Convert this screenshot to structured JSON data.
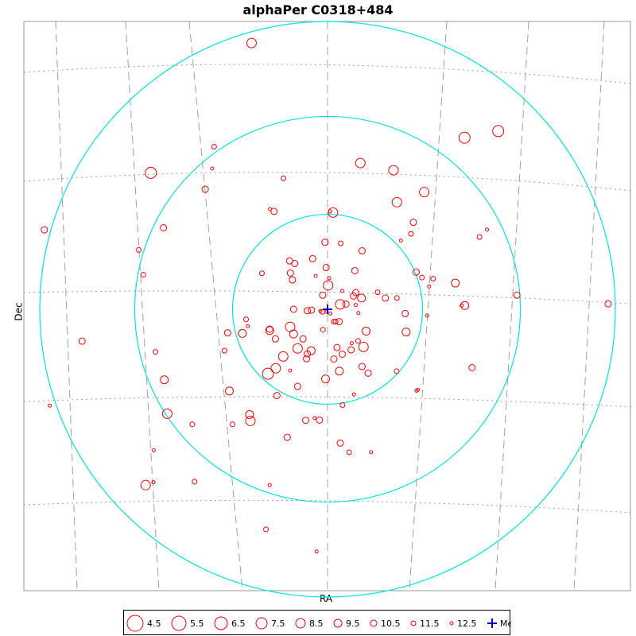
{
  "chart_data": {
    "type": "scatter",
    "title": "alphaPer  C0318+484",
    "xlabel": "RA",
    "ylabel": "Dec",
    "median_label": "Median",
    "median": [
      0,
      0
    ],
    "xlim": [
      -100,
      100
    ],
    "ylim": [
      -100,
      100
    ],
    "colors": {
      "stars": "#ff0000",
      "rings": "#00e5e5",
      "median": "#0000cc",
      "grid": "#a0a0a0"
    },
    "rings_radius": [
      33,
      67,
      100
    ],
    "legend": [
      {
        "mag": "4.5"
      },
      {
        "mag": "5.5"
      },
      {
        "mag": "6.5"
      },
      {
        "mag": "7.5"
      },
      {
        "mag": "8.5"
      },
      {
        "mag": "9.5"
      },
      {
        "mag": "10.5"
      },
      {
        "mag": "11.5"
      },
      {
        "mag": "12.5"
      }
    ],
    "stars": [
      {
        "x": -26.4,
        "y": 92.5,
        "mag": 8.5
      },
      {
        "x": 59.3,
        "y": 61.9,
        "mag": 7.5
      },
      {
        "x": 47.6,
        "y": 59.6,
        "mag": 7.5
      },
      {
        "x": -39.4,
        "y": 56.5,
        "mag": 11.5
      },
      {
        "x": -61.4,
        "y": 47.4,
        "mag": 7.5
      },
      {
        "x": -40.1,
        "y": 48.9,
        "mag": 12.5
      },
      {
        "x": 11.4,
        "y": 50.8,
        "mag": 8.5
      },
      {
        "x": 22.9,
        "y": 48.3,
        "mag": 8.5
      },
      {
        "x": -15.3,
        "y": 45.5,
        "mag": 11.5
      },
      {
        "x": 33.6,
        "y": 40.7,
        "mag": 8.5
      },
      {
        "x": -42.5,
        "y": 41.7,
        "mag": 10.5
      },
      {
        "x": -98.4,
        "y": 27.6,
        "mag": 10.5
      },
      {
        "x": -57.0,
        "y": 28.3,
        "mag": 10.5
      },
      {
        "x": -65.6,
        "y": 20.6,
        "mag": 11.5
      },
      {
        "x": -64.0,
        "y": 12.0,
        "mag": 11.5
      },
      {
        "x": -20.0,
        "y": 34.8,
        "mag": 12.5
      },
      {
        "x": -18.6,
        "y": 34.0,
        "mag": 10.5
      },
      {
        "x": 0.9,
        "y": 34.0,
        "mag": 12.5
      },
      {
        "x": 1.9,
        "y": 33.6,
        "mag": 8.5
      },
      {
        "x": 24.1,
        "y": 37.2,
        "mag": 8.5
      },
      {
        "x": 29.8,
        "y": 30.2,
        "mag": 10.5
      },
      {
        "x": 29.0,
        "y": 26.2,
        "mag": 11.5
      },
      {
        "x": 25.5,
        "y": 23.9,
        "mag": 12.5
      },
      {
        "x": 52.8,
        "y": 25.1,
        "mag": 11.5
      },
      {
        "x": 55.4,
        "y": 27.7,
        "mag": 12.5
      },
      {
        "x": -0.9,
        "y": 23.3,
        "mag": 10.5
      },
      {
        "x": -5.2,
        "y": 17.6,
        "mag": 10.5
      },
      {
        "x": 4.6,
        "y": 22.9,
        "mag": 11.5
      },
      {
        "x": 12.0,
        "y": 20.3,
        "mag": 10.5
      },
      {
        "x": -0.5,
        "y": 14.5,
        "mag": 10.5
      },
      {
        "x": 9.5,
        "y": 13.4,
        "mag": 10.5
      },
      {
        "x": -13.2,
        "y": 16.8,
        "mag": 10.5
      },
      {
        "x": -11.4,
        "y": 15.9,
        "mag": 10.5
      },
      {
        "x": -22.8,
        "y": 12.5,
        "mag": 11.5
      },
      {
        "x": -12.9,
        "y": 12.6,
        "mag": 10.5
      },
      {
        "x": -4.1,
        "y": 11.6,
        "mag": 12.5
      },
      {
        "x": -12.2,
        "y": 10.2,
        "mag": 10.5
      },
      {
        "x": 0.6,
        "y": 10.8,
        "mag": 12.5
      },
      {
        "x": 0.2,
        "y": 8.3,
        "mag": 8.5
      },
      {
        "x": -1.7,
        "y": 4.9,
        "mag": 10.5
      },
      {
        "x": 5.1,
        "y": 6.4,
        "mag": 12.5
      },
      {
        "x": 9.8,
        "y": 5.8,
        "mag": 10.5
      },
      {
        "x": 17.4,
        "y": 5.9,
        "mag": 11.5
      },
      {
        "x": 30.8,
        "y": 12.9,
        "mag": 10.5
      },
      {
        "x": 32.8,
        "y": 11.0,
        "mag": 11.5
      },
      {
        "x": 36.7,
        "y": 10.6,
        "mag": 11.5
      },
      {
        "x": 35.3,
        "y": 7.9,
        "mag": 12.5
      },
      {
        "x": 44.4,
        "y": 9.1,
        "mag": 9.5
      },
      {
        "x": 46.6,
        "y": 1.3,
        "mag": 12.5
      },
      {
        "x": 47.7,
        "y": 1.3,
        "mag": 9.5
      },
      {
        "x": 65.8,
        "y": 4.9,
        "mag": 10.5
      },
      {
        "x": 97.5,
        "y": 1.9,
        "mag": 10.5
      },
      {
        "x": 9.0,
        "y": 4.6,
        "mag": 10.5
      },
      {
        "x": 11.8,
        "y": 3.9,
        "mag": 9.5
      },
      {
        "x": 20.1,
        "y": 3.9,
        "mag": 10.5
      },
      {
        "x": 24.1,
        "y": 3.9,
        "mag": 11.5
      },
      {
        "x": 6.4,
        "y": 1.8,
        "mag": 10.5
      },
      {
        "x": 9.8,
        "y": 1.5,
        "mag": 12.5
      },
      {
        "x": -11.8,
        "y": 0.0,
        "mag": 10.5
      },
      {
        "x": -7.0,
        "y": -0.5,
        "mag": 10.5
      },
      {
        "x": -5.6,
        "y": -0.3,
        "mag": 10.5
      },
      {
        "x": -2.5,
        "y": -0.6,
        "mag": 12.5
      },
      {
        "x": -0.3,
        "y": -0.9,
        "mag": 12.5
      },
      {
        "x": -1.8,
        "y": -0.9,
        "mag": 11.5
      },
      {
        "x": 4.4,
        "y": 1.7,
        "mag": 8.5
      },
      {
        "x": 1.0,
        "y": -1.5,
        "mag": 12.5
      },
      {
        "x": 10.7,
        "y": -1.3,
        "mag": 12.5
      },
      {
        "x": 27.0,
        "y": -1.5,
        "mag": 10.5
      },
      {
        "x": 34.6,
        "y": -2.2,
        "mag": 12.5
      },
      {
        "x": 2.2,
        "y": -4.3,
        "mag": 11.5
      },
      {
        "x": 2.8,
        "y": -4.3,
        "mag": 11.5
      },
      {
        "x": 4.0,
        "y": -4.3,
        "mag": 10.5
      },
      {
        "x": -28.3,
        "y": -3.5,
        "mag": 11.5
      },
      {
        "x": -27.7,
        "y": -5.9,
        "mag": 12.5
      },
      {
        "x": -13.0,
        "y": -6.1,
        "mag": 8.5
      },
      {
        "x": -20.1,
        "y": -7.4,
        "mag": 9.5
      },
      {
        "x": -29.6,
        "y": -8.4,
        "mag": 9.5
      },
      {
        "x": -34.7,
        "y": -8.2,
        "mag": 10.5
      },
      {
        "x": -20.1,
        "y": -6.9,
        "mag": 10.5
      },
      {
        "x": -11.8,
        "y": -8.6,
        "mag": 9.5
      },
      {
        "x": -8.5,
        "y": -10.3,
        "mag": 10.5
      },
      {
        "x": -18.1,
        "y": -10.3,
        "mag": 10.5
      },
      {
        "x": -1.6,
        "y": -7.1,
        "mag": 11.5
      },
      {
        "x": 13.4,
        "y": -7.6,
        "mag": 9.5
      },
      {
        "x": 27.3,
        "y": -7.9,
        "mag": 9.5
      },
      {
        "x": 10.6,
        "y": -11.0,
        "mag": 11.5
      },
      {
        "x": 8.4,
        "y": -11.8,
        "mag": 12.5
      },
      {
        "x": -5.7,
        "y": -14.4,
        "mag": 9.5
      },
      {
        "x": 3.3,
        "y": -13.3,
        "mag": 10.5
      },
      {
        "x": -10.4,
        "y": -13.6,
        "mag": 8.5
      },
      {
        "x": -7.0,
        "y": -15.5,
        "mag": 10.5
      },
      {
        "x": 8.2,
        "y": -14.1,
        "mag": 10.5
      },
      {
        "x": 12.5,
        "y": -13.1,
        "mag": 8.5
      },
      {
        "x": 5.1,
        "y": -15.6,
        "mag": 10.5
      },
      {
        "x": 2.2,
        "y": -17.3,
        "mag": 10.5
      },
      {
        "x": -15.4,
        "y": -16.4,
        "mag": 8.5
      },
      {
        "x": -7.3,
        "y": -17.2,
        "mag": 10.5
      },
      {
        "x": -35.8,
        "y": -14.4,
        "mag": 11.5
      },
      {
        "x": -59.8,
        "y": -14.8,
        "mag": 11.5
      },
      {
        "x": -85.3,
        "y": -11.1,
        "mag": 10.5
      },
      {
        "x": -18.0,
        "y": -20.5,
        "mag": 8.5
      },
      {
        "x": 12.0,
        "y": -19.9,
        "mag": 10.5
      },
      {
        "x": -20.7,
        "y": -22.4,
        "mag": 7.5
      },
      {
        "x": 4.1,
        "y": -21.5,
        "mag": 9.5
      },
      {
        "x": 14.1,
        "y": -22.2,
        "mag": 10.5
      },
      {
        "x": 24.0,
        "y": -21.5,
        "mag": 11.5
      },
      {
        "x": -56.7,
        "y": -24.5,
        "mag": 9.5
      },
      {
        "x": -10.4,
        "y": -26.8,
        "mag": 10.5
      },
      {
        "x": -0.7,
        "y": -24.2,
        "mag": 9.5
      },
      {
        "x": 50.2,
        "y": -20.3,
        "mag": 10.5
      },
      {
        "x": -34.1,
        "y": -28.4,
        "mag": 9.5
      },
      {
        "x": -17.6,
        "y": -30.0,
        "mag": 10.5
      },
      {
        "x": 9.2,
        "y": -29.6,
        "mag": 12.5
      },
      {
        "x": 31.4,
        "y": -28.0,
        "mag": 12.5
      },
      {
        "x": -96.5,
        "y": -33.5,
        "mag": 12.5
      },
      {
        "x": -27.1,
        "y": -36.6,
        "mag": 9.5
      },
      {
        "x": 5.2,
        "y": -33.3,
        "mag": 11.5
      },
      {
        "x": -2.8,
        "y": -38.5,
        "mag": 10.5
      },
      {
        "x": -26.8,
        "y": -38.8,
        "mag": 8.5
      },
      {
        "x": -7.6,
        "y": -38.6,
        "mag": 10.5
      },
      {
        "x": -55.7,
        "y": -36.3,
        "mag": 8.5
      },
      {
        "x": -14.0,
        "y": -44.5,
        "mag": 10.5
      },
      {
        "x": -4.5,
        "y": -37.8,
        "mag": 12.5
      },
      {
        "x": 4.4,
        "y": -46.5,
        "mag": 10.5
      },
      {
        "x": 7.5,
        "y": -49.7,
        "mag": 11.5
      },
      {
        "x": -60.4,
        "y": -49.0,
        "mag": 12.5
      },
      {
        "x": -60.5,
        "y": -60.1,
        "mag": 12.5
      },
      {
        "x": -63.2,
        "y": -61.1,
        "mag": 8.5
      },
      {
        "x": -46.2,
        "y": -59.9,
        "mag": 11.5
      },
      {
        "x": -20.1,
        "y": -61.1,
        "mag": 12.5
      },
      {
        "x": -21.4,
        "y": -76.5,
        "mag": 11.5
      },
      {
        "x": -3.8,
        "y": -84.2,
        "mag": 12.5
      },
      {
        "x": 15.1,
        "y": -49.7,
        "mag": 12.5
      },
      {
        "x": 30.9,
        "y": -28.3,
        "mag": 12.5
      },
      {
        "x": -13.0,
        "y": -21.3,
        "mag": 12.5
      },
      {
        "x": -33.0,
        "y": -40.0,
        "mag": 11.5
      },
      {
        "x": -47.0,
        "y": -40.0,
        "mag": 11.5
      }
    ]
  }
}
